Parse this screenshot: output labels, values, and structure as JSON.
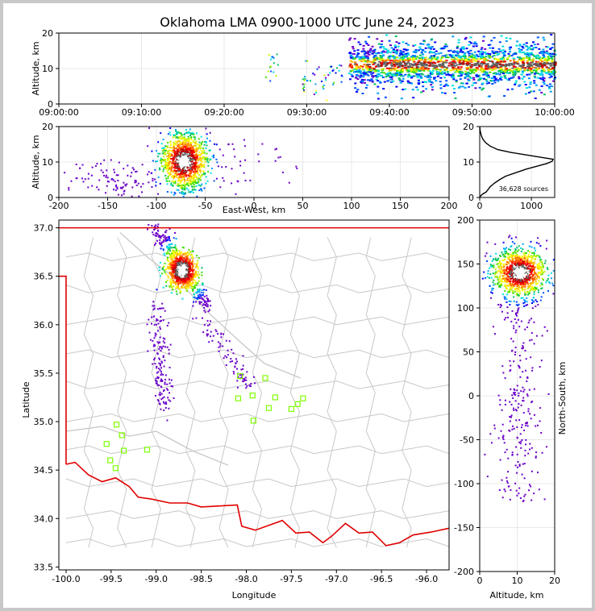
{
  "title": "Oklahoma LMA 0900-1000 UTC June 24, 2023",
  "colors": {
    "state_border": "#e00000",
    "county_lines": "#c8c8c8",
    "stations": "#7fff00",
    "hist_line": "#000000"
  },
  "chart_data": [
    {
      "panel": "time-altitude",
      "type": "scatter",
      "ylabel": "Altitude, km",
      "xticks": [
        "09:00:00",
        "09:10:00",
        "09:20:00",
        "09:30:00",
        "09:40:00",
        "09:50:00",
        "10:00:00"
      ],
      "yticks": [
        "0",
        "10",
        "20"
      ],
      "xlim_minutes": [
        0,
        60
      ],
      "ylim": [
        0,
        20
      ],
      "grid": true,
      "colormap": "rainbow density (blue low, red high)",
      "dense_region": {
        "x_minutes": [
          35,
          60
        ],
        "altitude_km": [
          2,
          20
        ],
        "core_altitude_km": [
          10,
          13
        ]
      }
    },
    {
      "panel": "east-west-altitude",
      "type": "scatter",
      "xlabel": "East-West, km",
      "ylabel": "Altitude, km",
      "xticks": [
        "-200",
        "-150",
        "-100",
        "-50",
        "0",
        "50",
        "100",
        "150",
        "200"
      ],
      "yticks": [
        "0",
        "10",
        "20"
      ],
      "xlim": [
        -200,
        200
      ],
      "ylim": [
        0,
        20
      ],
      "grid": true,
      "core": {
        "x_km": -72,
        "altitude_km": 10.5
      }
    },
    {
      "panel": "altitude-histogram",
      "type": "line",
      "xticks": [
        "0",
        "1000"
      ],
      "yticks": [
        "0",
        "10",
        "20"
      ],
      "xlim": [
        0,
        1450
      ],
      "ylim": [
        0,
        20
      ],
      "annotation": "36,628 sources",
      "x": [
        0,
        20,
        60,
        120,
        150,
        200,
        280,
        380,
        500,
        700,
        900,
        1100,
        1300,
        1400,
        1420,
        1200,
        900,
        600,
        350,
        200,
        110,
        60,
        30,
        10,
        0
      ],
      "y": [
        0,
        0.5,
        1.0,
        1.5,
        2.0,
        3.0,
        4.0,
        5.0,
        6.0,
        7.0,
        8.0,
        8.8,
        9.6,
        10.2,
        10.8,
        11.3,
        12.0,
        12.7,
        13.5,
        14.5,
        15.5,
        16.5,
        17.5,
        18.8,
        20
      ]
    },
    {
      "panel": "plan-view-map",
      "type": "scatter",
      "xlabel": "Longitude",
      "ylabel": "Latitude",
      "xticks": [
        "-100.0",
        "-99.5",
        "-99.0",
        "-98.5",
        "-98.0",
        "-97.5",
        "-97.0",
        "-96.5",
        "-96.0"
      ],
      "yticks": [
        "33.5",
        "34.0",
        "34.5",
        "35.0",
        "35.5",
        "36.0",
        "36.5",
        "37.0"
      ],
      "xlim": [
        -100.08,
        -95.75
      ],
      "ylim": [
        33.47,
        37.08
      ],
      "core": {
        "lon": -98.72,
        "lat": 36.57
      },
      "stations": [
        [
          -98.07,
          35.47
        ],
        [
          -97.79,
          35.45
        ],
        [
          -98.09,
          35.24
        ],
        [
          -97.93,
          35.27
        ],
        [
          -97.68,
          35.25
        ],
        [
          -97.37,
          35.24
        ],
        [
          -97.43,
          35.18
        ],
        [
          -97.75,
          35.14
        ],
        [
          -97.5,
          35.13
        ],
        [
          -97.92,
          35.01
        ],
        [
          -99.44,
          34.97
        ],
        [
          -99.38,
          34.86
        ],
        [
          -99.55,
          34.77
        ],
        [
          -99.36,
          34.7
        ],
        [
          -99.1,
          34.71
        ],
        [
          -99.51,
          34.6
        ],
        [
          -99.45,
          34.52
        ]
      ]
    },
    {
      "panel": "altitude-north-south",
      "type": "scatter",
      "xlabel": "Altitude, km",
      "ylabel": "North-South, km",
      "xticks": [
        "0",
        "10",
        "20"
      ],
      "yticks": [
        "200",
        "150",
        "100",
        "50",
        "0",
        "-50",
        "-100",
        "-150",
        "-200"
      ],
      "xlim": [
        0,
        20
      ],
      "ylim": [
        -200,
        200
      ],
      "grid": true,
      "core": {
        "altitude_km": 10.5,
        "ns_km": 141
      }
    }
  ]
}
